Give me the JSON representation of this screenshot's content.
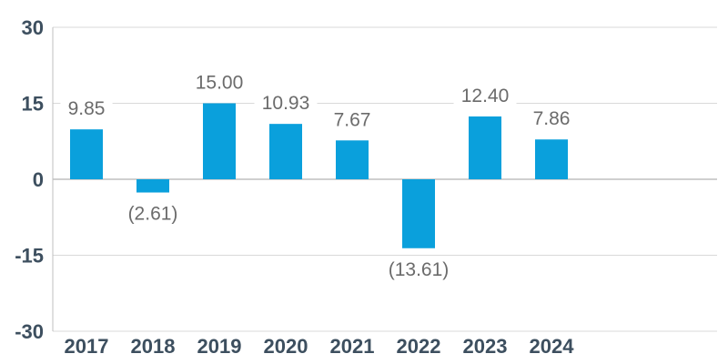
{
  "chart_data": {
    "type": "bar",
    "title": "",
    "xlabel": "",
    "ylabel": "",
    "categories": [
      "2017",
      "2018",
      "2019",
      "2020",
      "2021",
      "2022",
      "2023",
      "2024"
    ],
    "values": [
      9.85,
      -2.61,
      15.0,
      10.93,
      7.67,
      -13.61,
      12.4,
      7.86
    ],
    "data_labels": [
      "9.85",
      "(2.61)",
      "15.00",
      "10.93",
      "7.67",
      "(13.61)",
      "12.40",
      "7.86"
    ],
    "ylim": [
      -30,
      30
    ],
    "yticks": [
      30,
      15,
      0,
      -15,
      -30
    ],
    "ytick_labels": [
      "30",
      "15",
      "0",
      "-15",
      "-30"
    ],
    "grid": true,
    "legend": "none",
    "colors": {
      "bar": "#0aa0dc",
      "grid": "#d9d9d9",
      "axis": "#bfbfbf",
      "tick_text": "#3d4f5f",
      "label_text": "#6b6b6b"
    }
  }
}
